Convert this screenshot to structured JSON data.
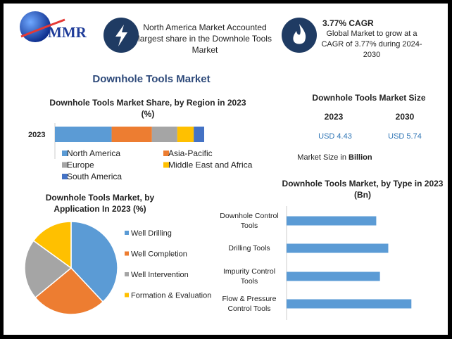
{
  "header": {
    "logo": "MMR",
    "fact1": "North America Market Accounted largest share in the Downhole Tools Market",
    "fact2_title": "3.77% CAGR",
    "fact2": "Global Market to grow at a CAGR of 3.77% during 2024-2030"
  },
  "title": "Downhole Tools Market",
  "market_size": {
    "title": "Downhole Tools Market Size",
    "years": [
      "2023",
      "2030"
    ],
    "values": [
      "USD 4.43",
      "USD 5.74"
    ],
    "note": "Market Size in",
    "note_unit": "Billion"
  },
  "chart_data": [
    {
      "type": "stacked-bar",
      "title": "Downhole Tools Market Share, by Region in 2023 (%)",
      "categories": [
        "2023"
      ],
      "xlim": [
        0,
        100
      ],
      "series": [
        {
          "name": "North America",
          "color": "#5b9bd5",
          "values": [
            38
          ]
        },
        {
          "name": "Asia-Pacific",
          "color": "#ed7d31",
          "values": [
            27
          ]
        },
        {
          "name": "Europe",
          "color": "#a5a5a5",
          "values": [
            17
          ]
        },
        {
          "name": "Middle East and Africa",
          "color": "#ffc000",
          "values": [
            11
          ]
        },
        {
          "name": "South America",
          "color": "#4472c4",
          "values": [
            7
          ]
        }
      ]
    },
    {
      "type": "pie",
      "title": "Downhole Tools Market, by Application In 2023 (%)",
      "categories": [
        "Well Drilling",
        "Well Completion",
        "Well Intervention",
        "Formation & Evaluation"
      ],
      "values": [
        38,
        26,
        21,
        15
      ],
      "colors": [
        "#5b9bd5",
        "#ed7d31",
        "#a5a5a5",
        "#ffc000"
      ]
    },
    {
      "type": "hbar",
      "title": "Downhole Tools Market, by Type in 2023 (Bn)",
      "categories": [
        "Downhole Control Tools",
        "Drilling Tools",
        "Impurity Control Tools",
        "Flow & Pressure Control Tools"
      ],
      "values": [
        0.97,
        1.1,
        1.01,
        1.35
      ],
      "color": "#5b9bd5",
      "xlim": [
        0,
        1.5
      ]
    }
  ]
}
